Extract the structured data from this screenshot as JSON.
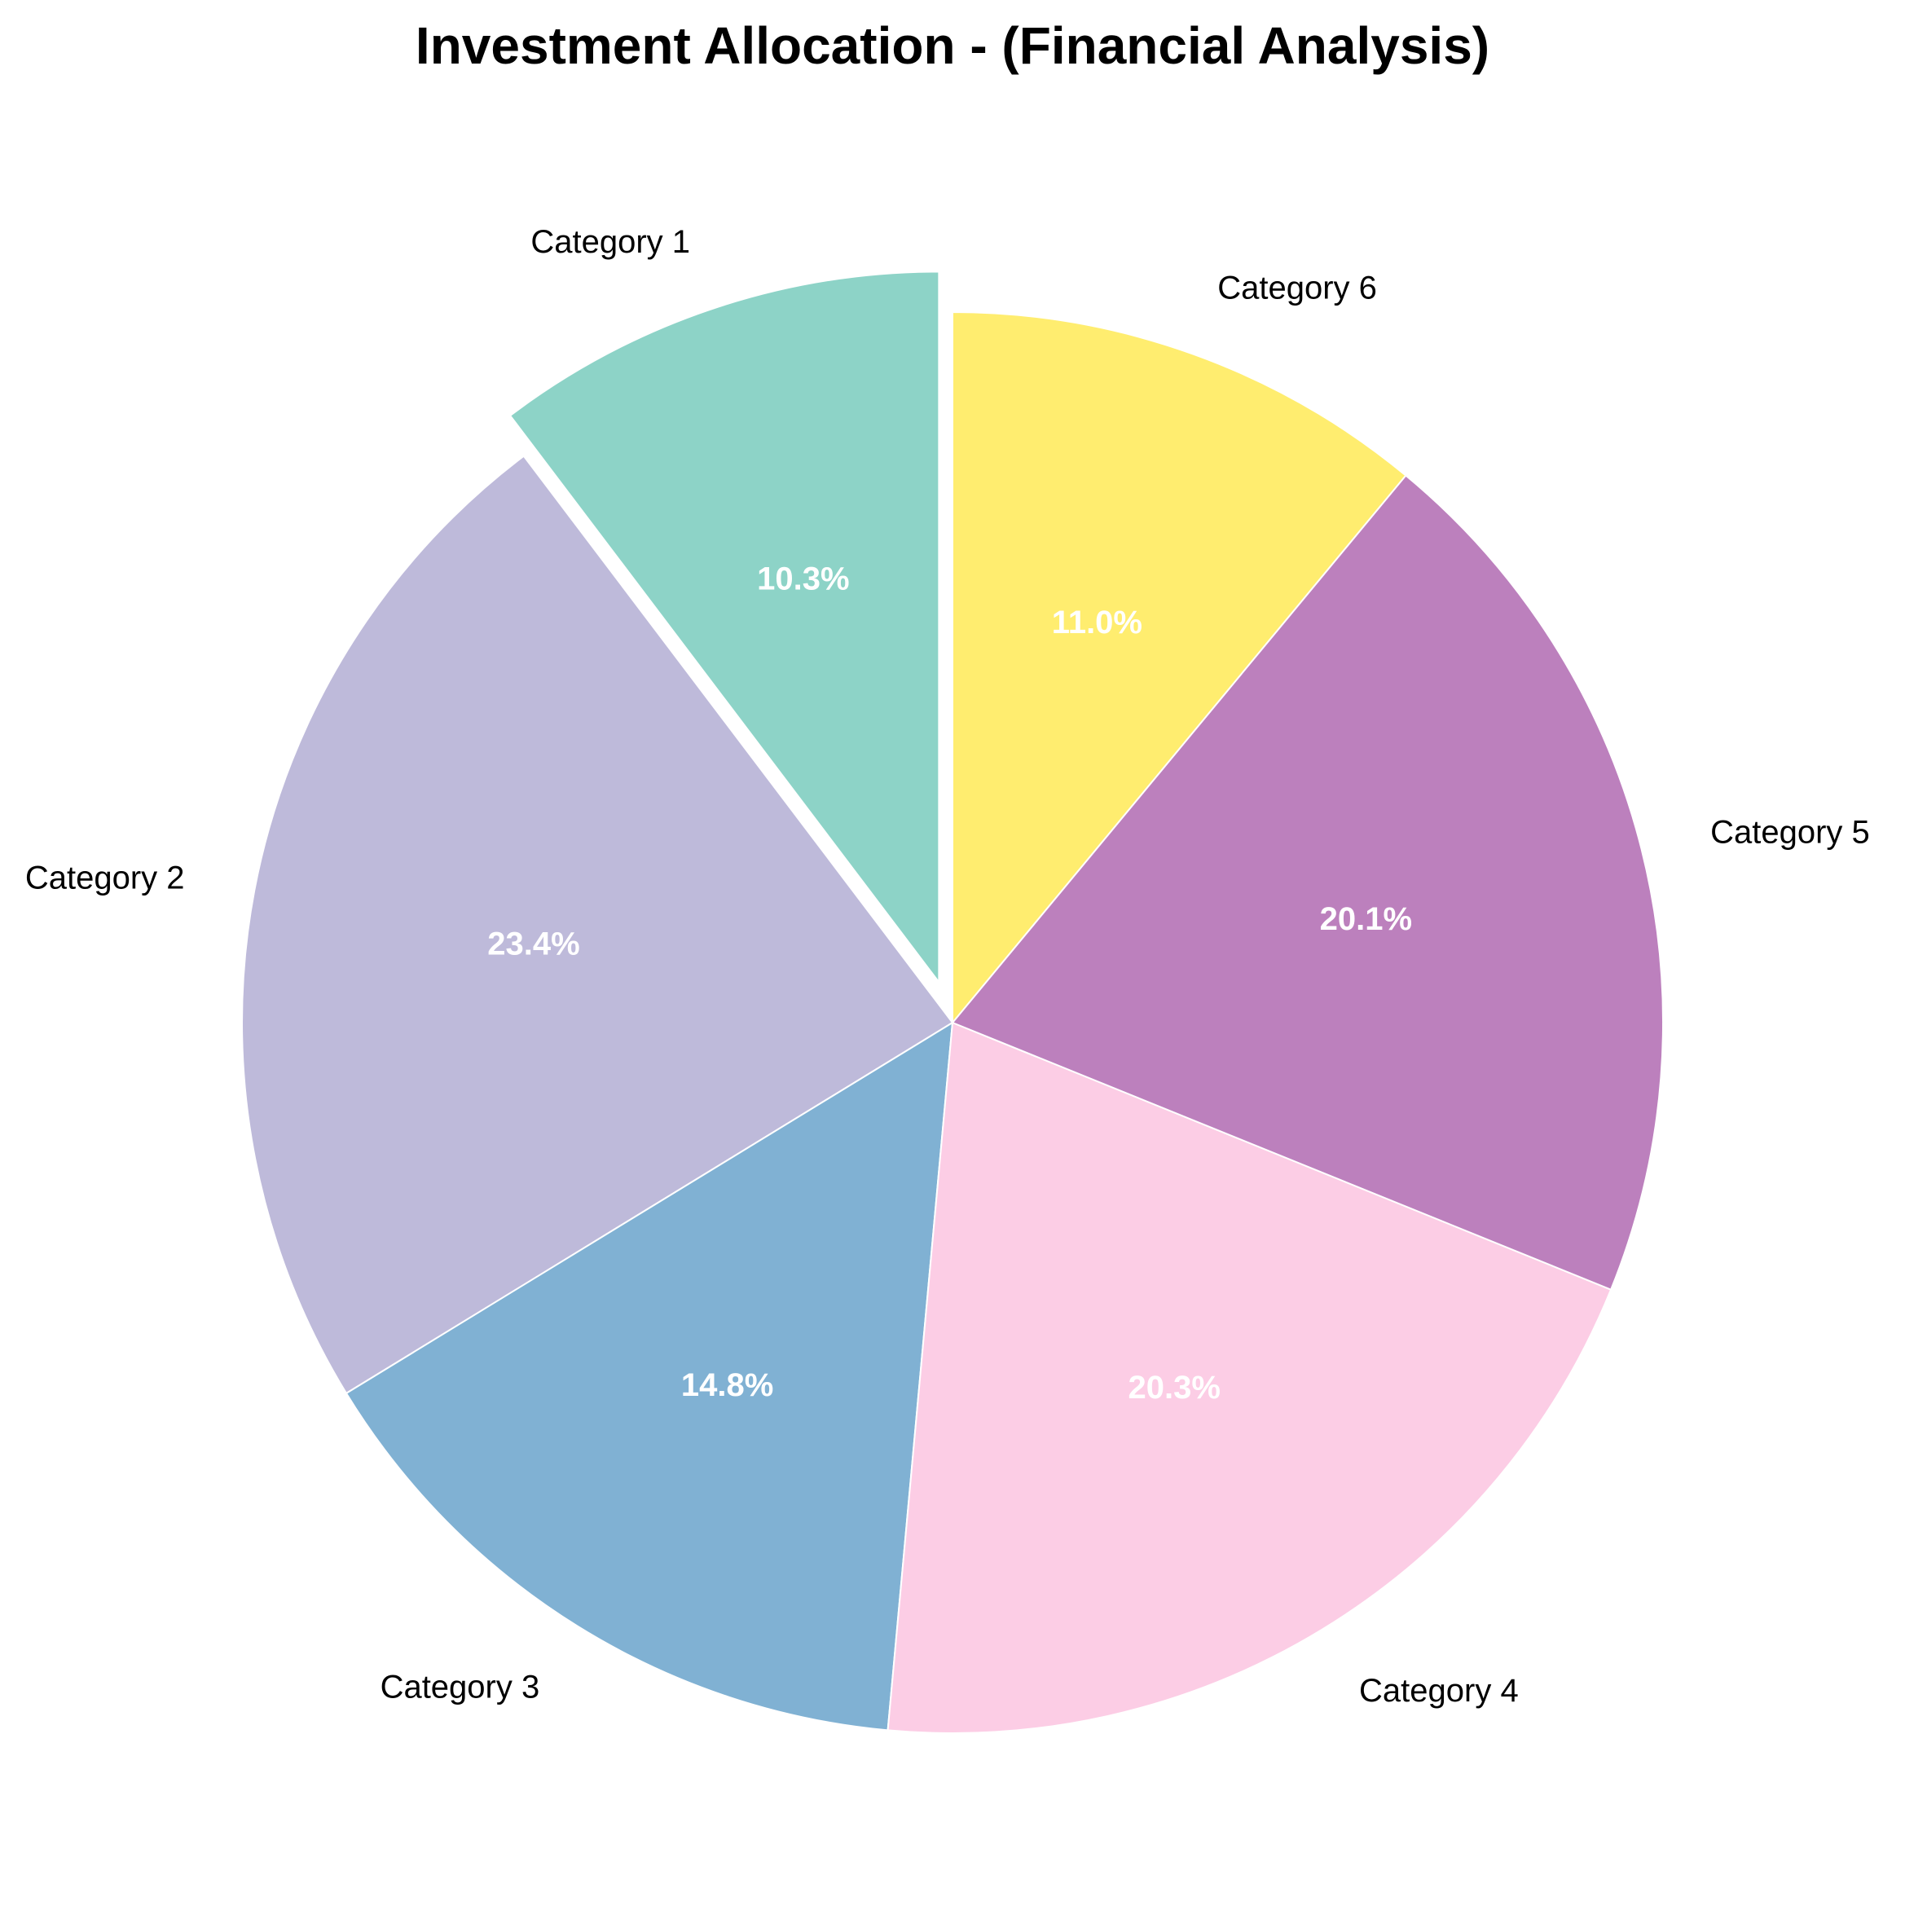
{
  "chart_data": {
    "type": "pie",
    "title": "Investment Allocation - (Financial Analysis)",
    "start_angle_deg": 90,
    "direction": "counterclockwise",
    "explode": [
      0.06,
      0,
      0,
      0,
      0,
      0
    ],
    "categories": [
      "Category 1",
      "Category 2",
      "Category 3",
      "Category 4",
      "Category 5",
      "Category 6"
    ],
    "values": [
      10.3,
      23.4,
      14.8,
      20.3,
      20.1,
      11.0
    ],
    "value_labels": [
      "10.3%",
      "23.4%",
      "14.8%",
      "20.3%",
      "20.1%",
      "11.0%"
    ],
    "colors": [
      "#8dd3c7",
      "#bebada",
      "#80b1d3",
      "#fccde5",
      "#bc80bd",
      "#ffed6f"
    ]
  }
}
